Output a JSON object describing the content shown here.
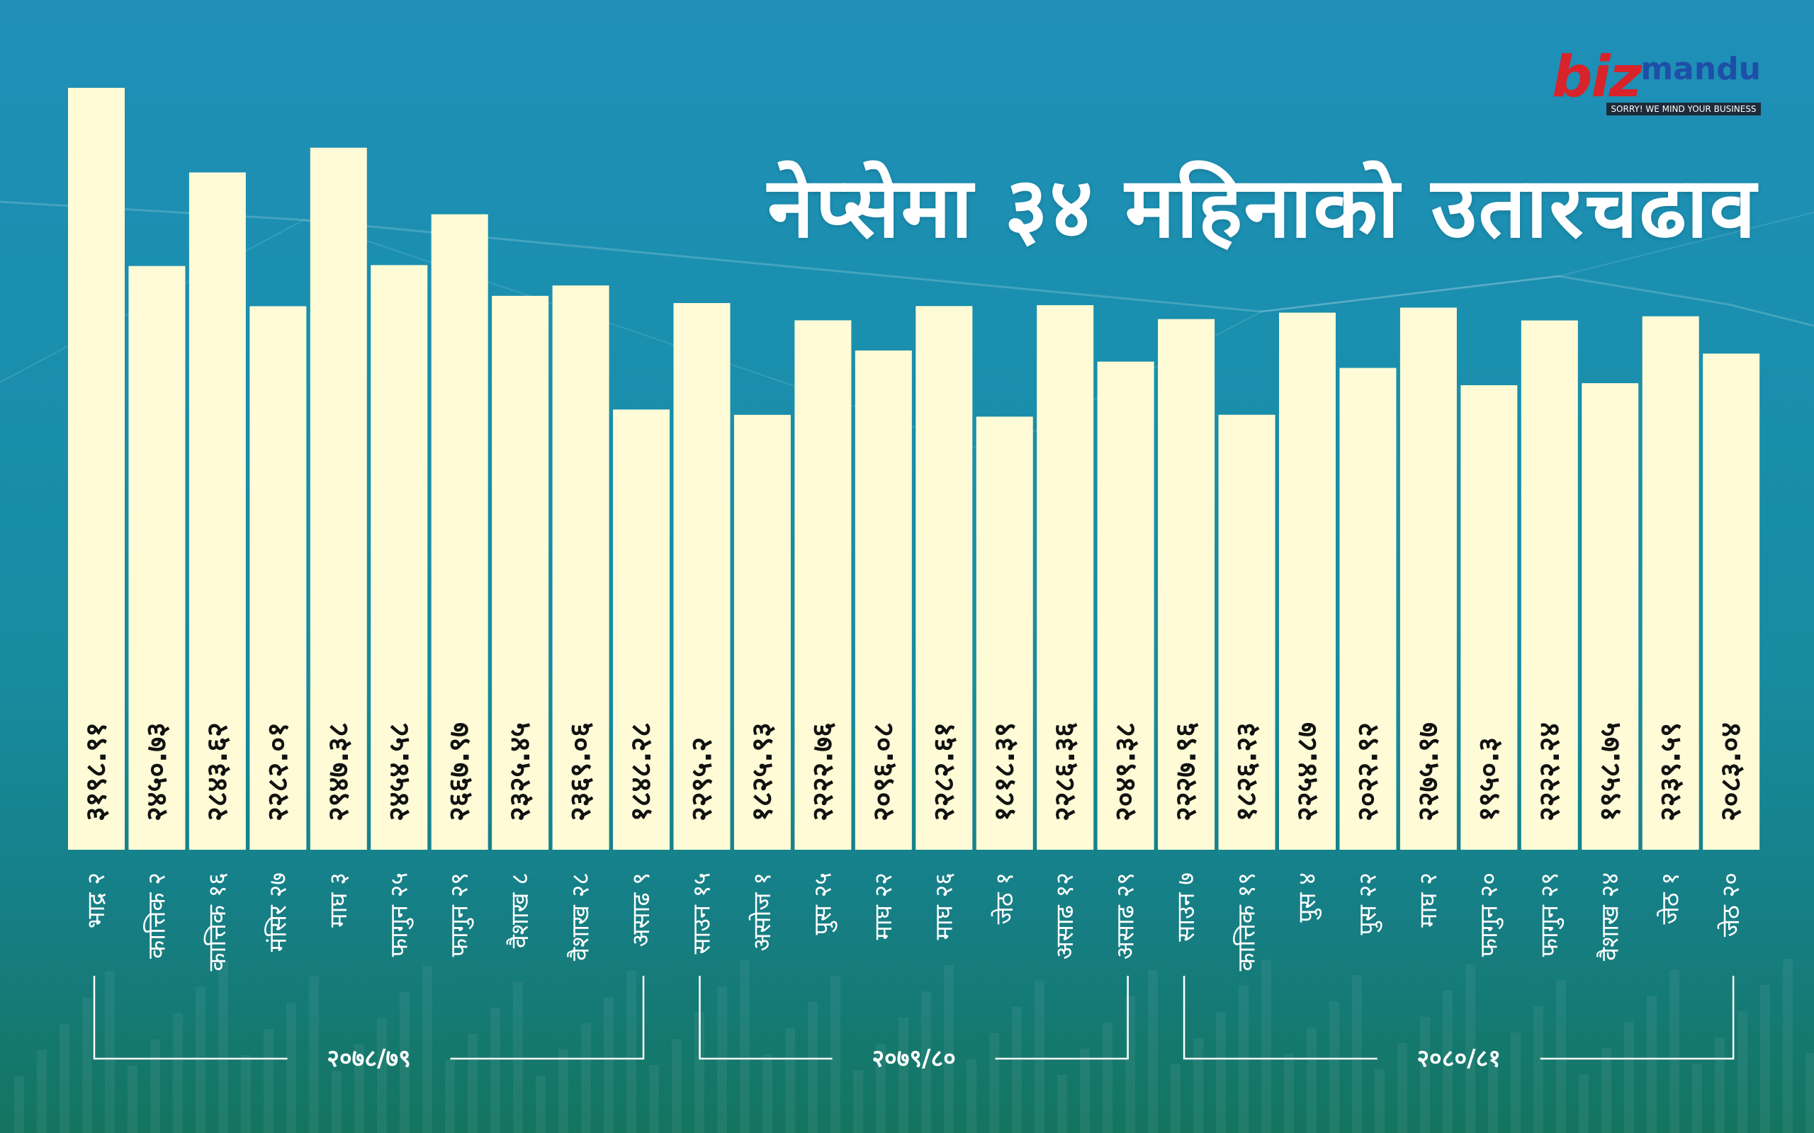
{
  "title": "नेप्सेमा ३४ महिनाको उतारचढाव",
  "logo": {
    "biz": "biz",
    "mandu": "mandu",
    "tagline": "SORRY! WE MIND YOUR BUSINESS"
  },
  "colors": {
    "bar": "#fefbd6",
    "text": "#111111",
    "bracket": "#ffffff",
    "title": "#ffffff",
    "logo_red": "#d8232a",
    "logo_blue": "#1e4fa8"
  },
  "chart_data": {
    "type": "bar",
    "title": "नेप्सेमा ३४ महिनाको उतारचढाव",
    "xlabel": "",
    "ylabel": "",
    "categories": [
      "भाद्र २",
      "कात्तिक २",
      "कात्तिक १६",
      "मंसिर २७",
      "माघ ३",
      "फागुन २५",
      "फागुन २९",
      "वैशाख ८",
      "वैशाख २८",
      "असाढ ९",
      "साउन १५",
      "असोज १",
      "पुस २५",
      "माघ २२",
      "माघ २६",
      "जेठ १",
      "असाढ १२",
      "असाढ २९",
      "साउन ७",
      "कात्तिक १९",
      "पुस ४",
      "पुस २२",
      "माघ २",
      "फागुन २०",
      "फागुन २९",
      "वैशाख २४",
      "जेठ १",
      "जेठ २०"
    ],
    "values": [
      3198.91,
      2450.73,
      2843.62,
      2282.01,
      2947.38,
      2454.58,
      2667.97,
      2325.45,
      2369.06,
      1848.28,
      2295.2,
      1825.93,
      2222.76,
      2096.08,
      2282.61,
      1818.39,
      2286.36,
      2049.38,
      2227.96,
      1826.23,
      2254.87,
      2022.92,
      2275.97,
      1950.3,
      2222.24,
      1958.75,
      2239.59,
      2083.04
    ],
    "labels": [
      "३१९८.९१",
      "२४५०.७३",
      "२८४३.६२",
      "२२८२.०१",
      "२९४७.३८",
      "२४५४.५८",
      "२६६७.९७",
      "२३२५.४५",
      "२३६९.०६",
      "१८४८.२८",
      "२२९५.२",
      "१८२५.९३",
      "२२२२.७६",
      "२०९६.०८",
      "२२८२.६१",
      "१८१८.३९",
      "२२८६.३६",
      "२०४९.३८",
      "२२२७.९६",
      "१८२६.२३",
      "२२५४.८७",
      "२०२२.९२",
      "२२७५.९७",
      "१९५०.३",
      "२२२२.२४",
      "१९५८.७५",
      "२२३९.५९",
      "२०८३.०४"
    ],
    "groups": [
      {
        "label": "२०७८/७९",
        "start": 0,
        "end": 9
      },
      {
        "label": "२०७९/८०",
        "start": 10,
        "end": 17
      },
      {
        "label": "२०८०/८१",
        "start": 18,
        "end": 27
      }
    ],
    "grid": false,
    "legend": "none"
  }
}
